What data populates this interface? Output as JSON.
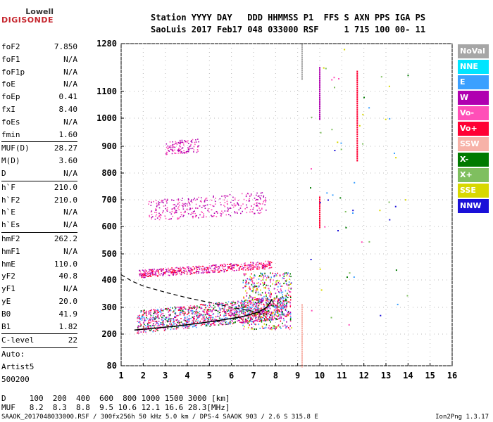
{
  "logo": {
    "line1": "Lowell",
    "line2": "DIGISONDE"
  },
  "header": {
    "line1": "Station YYYY DAY   DDD HHMMSS P1  FFS S AXN PPS IGA PS",
    "line2": "SaoLuis 2017 Feb17 048 033000 RSF     1 715 100 00- 11"
  },
  "params": {
    "group1": [
      {
        "name": "foF2",
        "value": "7.850"
      },
      {
        "name": "foF1",
        "value": "N/A"
      },
      {
        "name": "foF1p",
        "value": "N/A"
      },
      {
        "name": "foE",
        "value": "N/A"
      },
      {
        "name": "foEp",
        "value": "0.41"
      },
      {
        "name": "fxI",
        "value": "8.40"
      },
      {
        "name": "foEs",
        "value": "N/A"
      },
      {
        "name": "fmin",
        "value": "1.60"
      }
    ],
    "group2": [
      {
        "name": "MUF(D)",
        "value": "28.27"
      },
      {
        "name": "M(D)",
        "value": "3.60"
      },
      {
        "name": "D",
        "value": "N/A"
      }
    ],
    "group3": [
      {
        "name": "h`F",
        "value": "210.0"
      },
      {
        "name": "h`F2",
        "value": "210.0"
      },
      {
        "name": "h`E",
        "value": "N/A"
      },
      {
        "name": "h`Es",
        "value": "N/A"
      }
    ],
    "group4": [
      {
        "name": "hmF2",
        "value": "262.2"
      },
      {
        "name": "hmF1",
        "value": "N/A"
      },
      {
        "name": "hmE",
        "value": "110.0"
      },
      {
        "name": "yF2",
        "value": "40.8"
      },
      {
        "name": "yF1",
        "value": "N/A"
      },
      {
        "name": "yE",
        "value": "20.0"
      },
      {
        "name": "B0",
        "value": "41.9"
      },
      {
        "name": "B1",
        "value": "1.82"
      }
    ],
    "clevel": {
      "name": "C-level",
      "value": "22"
    },
    "auto": [
      "Auto:",
      "Artist5",
      "500200"
    ]
  },
  "legend": [
    {
      "label": "NoVal",
      "color": "#a6a6a6"
    },
    {
      "label": "NNE",
      "color": "#00e5ff"
    },
    {
      "label": "E",
      "color": "#3ba0ff"
    },
    {
      "label": "W",
      "color": "#b000b0"
    },
    {
      "label": "Vo-",
      "color": "#ff4fb8"
    },
    {
      "label": "Vo+",
      "color": "#ff0033"
    },
    {
      "label": "SSW",
      "color": "#f7b2a8"
    },
    {
      "label": "X-",
      "color": "#007a00"
    },
    {
      "label": "X+",
      "color": "#7fbf5f"
    },
    {
      "label": "SSE",
      "color": "#d8d800"
    },
    {
      "label": "NNW",
      "color": "#1a10d8"
    }
  ],
  "chart_data": {
    "type": "scatter",
    "x_ticks": [
      "1",
      "2",
      "3",
      "4",
      "5",
      "6",
      "7",
      "8",
      "9",
      "10",
      "11",
      "12",
      "13",
      "14",
      "15",
      "16"
    ],
    "y_ticks": [
      "1280",
      "1100",
      "1000",
      "900",
      "800",
      "700",
      "600",
      "500",
      "400",
      "300",
      "200",
      "80"
    ],
    "xlim": [
      1,
      16
    ],
    "grid": true,
    "trace_curve": [
      [
        1.6,
        215
      ],
      [
        2.5,
        222
      ],
      [
        3.5,
        230
      ],
      [
        4.5,
        240
      ],
      [
        5.5,
        252
      ],
      [
        6.5,
        265
      ],
      [
        7.2,
        282
      ],
      [
        7.6,
        300
      ],
      [
        7.85,
        330
      ]
    ],
    "profile_curve": [
      [
        1.0,
        420
      ],
      [
        1.5,
        395
      ],
      [
        2.0,
        378
      ],
      [
        3.0,
        355
      ],
      [
        4.0,
        335
      ],
      [
        5.0,
        318
      ],
      [
        6.0,
        300
      ],
      [
        7.0,
        285
      ],
      [
        7.8,
        270
      ]
    ],
    "echo_regions": [
      {
        "x": [
          1.7,
          8.5
        ],
        "y": [
          205,
          290
        ],
        "colors": [
          "#ff0033",
          "#ff4fb8",
          "#b000b0",
          "#007a00",
          "#3ba0ff"
        ]
      },
      {
        "x": [
          1.8,
          7.8
        ],
        "y": [
          410,
          440
        ],
        "colors": [
          "#ff4fb8",
          "#b000b0",
          "#ff0033"
        ]
      },
      {
        "x": [
          2.2,
          7.6
        ],
        "y": [
          620,
          700
        ],
        "colors": [
          "#ff4fb8",
          "#b000b0"
        ]
      },
      {
        "x": [
          3.0,
          4.5
        ],
        "y": [
          870,
          920
        ],
        "colors": [
          "#b000b0",
          "#ff4fb8"
        ]
      }
    ]
  },
  "d_table": {
    "d_label": "D",
    "d_values": [
      "100",
      "200",
      "400",
      "600",
      "800",
      "1000",
      "1500",
      "3000",
      "[km]"
    ],
    "muf_label": "MUF",
    "muf_values": [
      "8.2",
      "8.3",
      "8.8",
      "9.5",
      "10.6",
      "12.1",
      "16.6",
      "28.3",
      "[MHz]"
    ]
  },
  "footer": {
    "text": "SAAOK_2017048033000.RSF / 300fx256h 50 kHz 5.0 km / DPS-4 SAAOK 903 / 2.6 S 315.8 E",
    "version": "Ion2Png 1.3.17"
  }
}
